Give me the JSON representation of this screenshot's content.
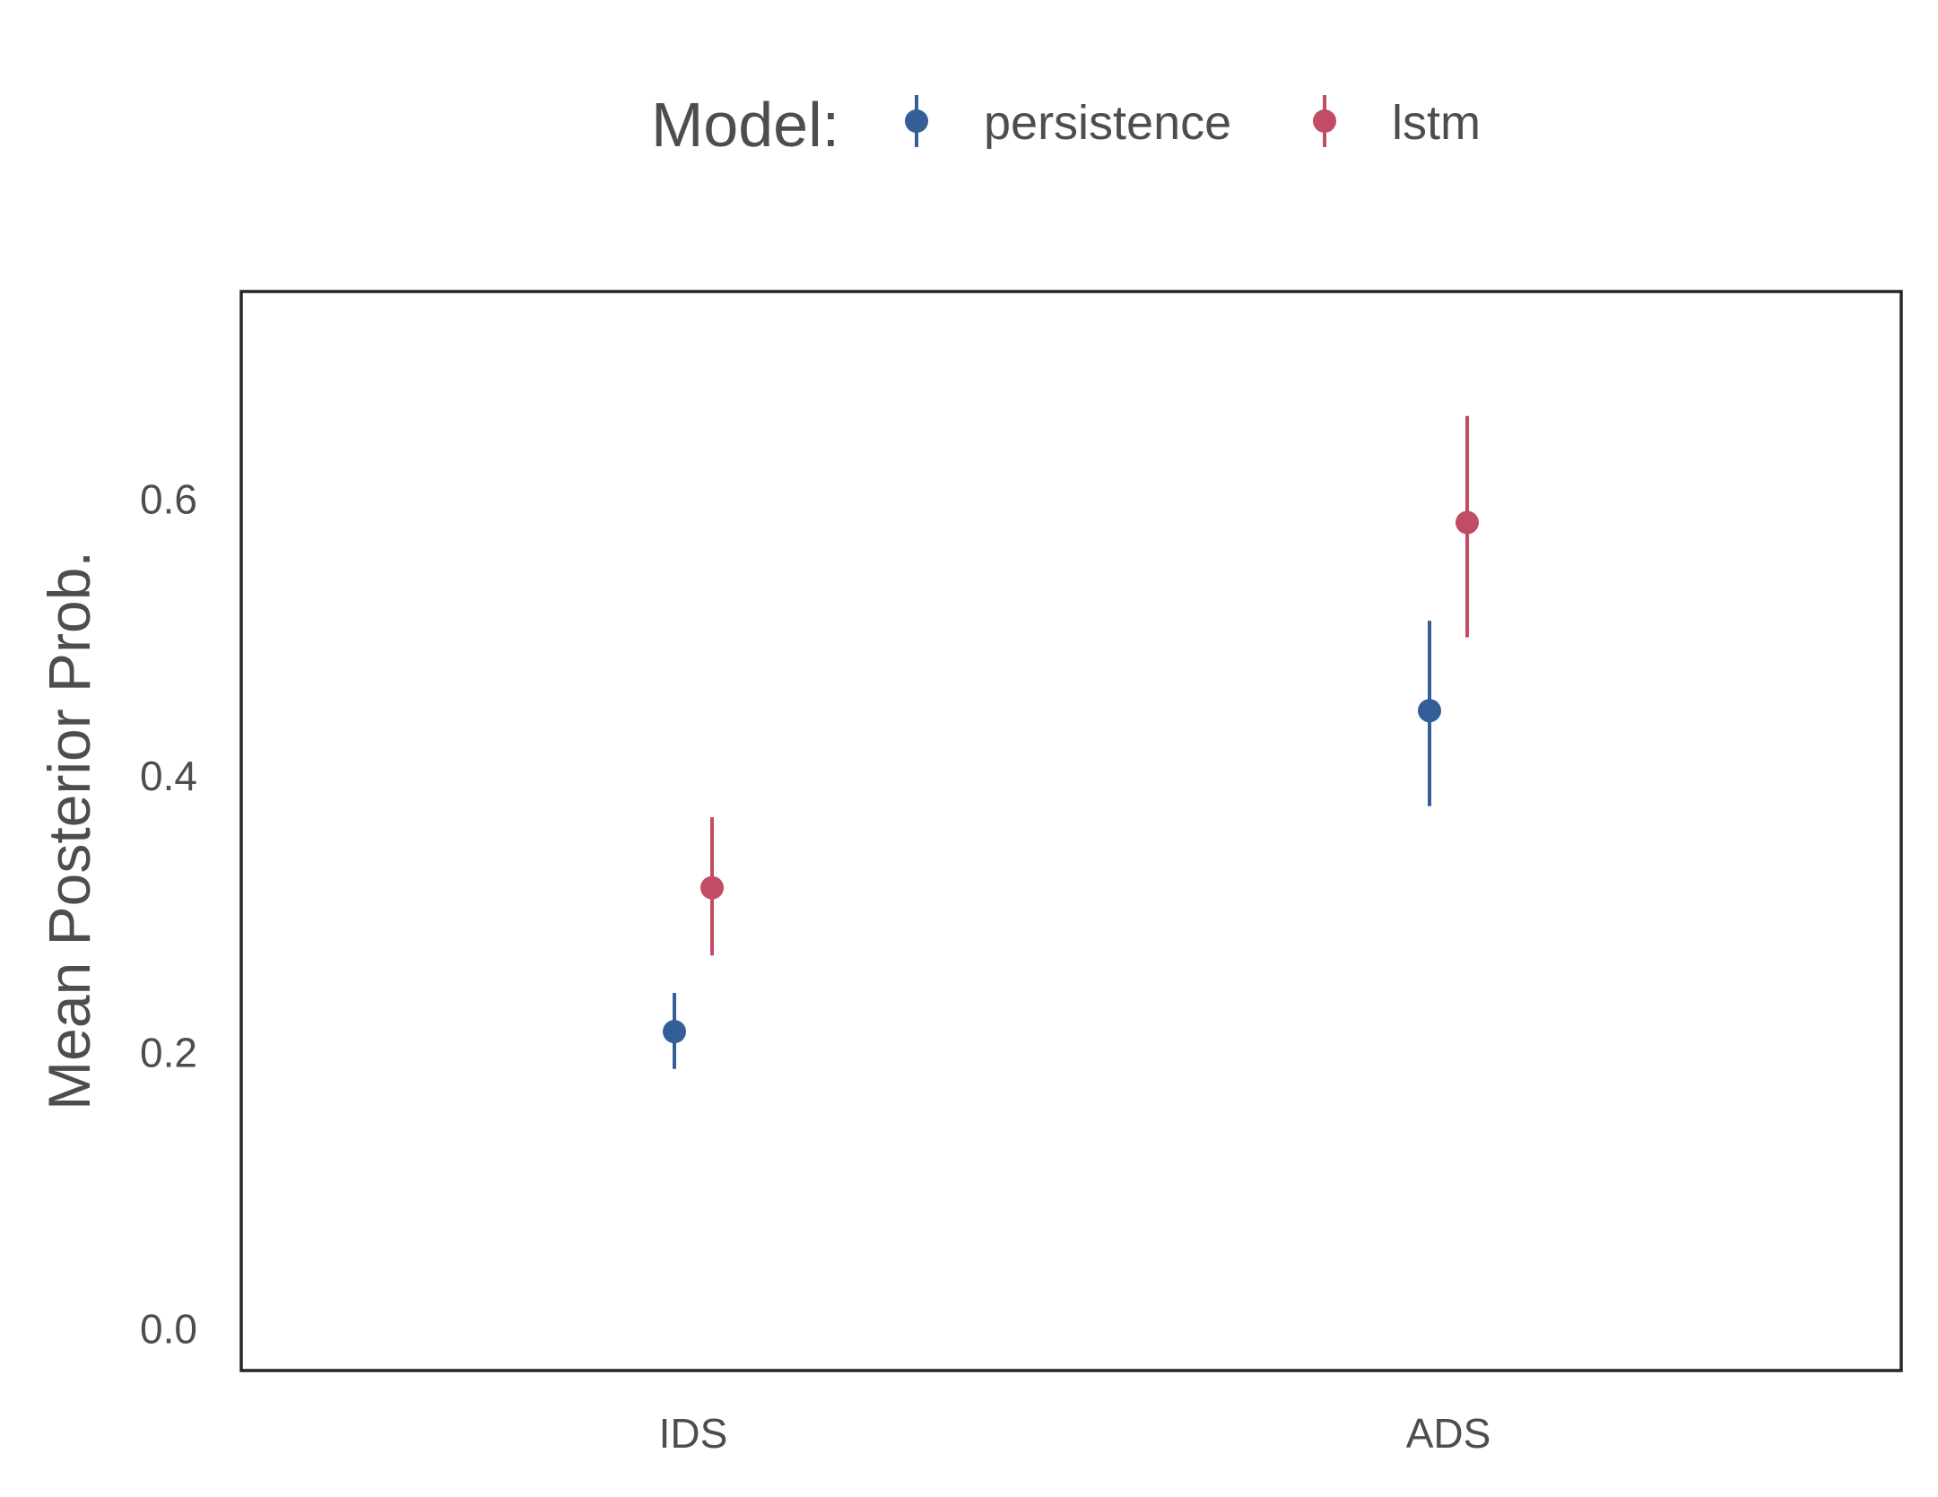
{
  "chart_data": {
    "type": "scatter",
    "title": "",
    "xlabel": "",
    "ylabel": "Mean Posterior Prob.",
    "categories": [
      "IDS",
      "ADS"
    ],
    "ylim": [
      -0.03,
      0.75
    ],
    "yticks": [
      "0.0",
      "0.2",
      "0.4",
      "0.6"
    ],
    "grid": false,
    "legend": {
      "title": "Model:",
      "placement": "top-center"
    },
    "series": [
      {
        "name": "persistence",
        "color": "#345e97",
        "values": [
          0.215,
          0.447
        ],
        "ci_low": [
          0.188,
          0.378
        ],
        "ci_high": [
          0.243,
          0.512
        ]
      },
      {
        "name": "lstm",
        "color": "#c24c65",
        "values": [
          0.319,
          0.583
        ],
        "ci_low": [
          0.27,
          0.5
        ],
        "ci_high": [
          0.37,
          0.66
        ]
      }
    ]
  }
}
